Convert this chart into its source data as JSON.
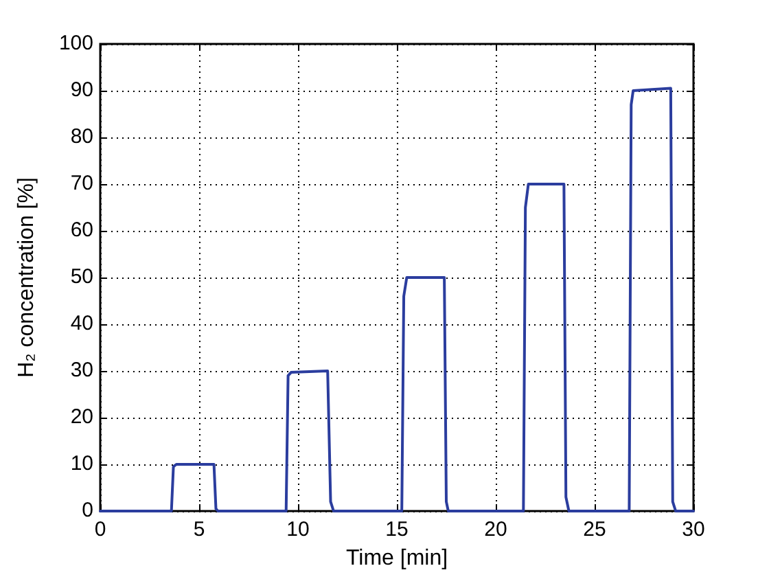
{
  "chart_data": {
    "type": "line",
    "xlabel": "Time [min]",
    "ylabel": "H₂ concentration [%]",
    "x": [
      0,
      3.6,
      3.7,
      3.85,
      5.75,
      5.85,
      5.95,
      9.4,
      9.5,
      9.65,
      11.5,
      11.65,
      11.8,
      15.25,
      15.35,
      15.5,
      17.4,
      17.5,
      17.6,
      21.4,
      21.5,
      21.65,
      23.45,
      23.55,
      23.7,
      26.75,
      26.85,
      26.95,
      28.85,
      28.95,
      29.1,
      30
    ],
    "series": [
      {
        "color": "#2b3d9e",
        "values": [
          0,
          0,
          9.5,
          10,
          10,
          0.5,
          0,
          0,
          29,
          29.7,
          30,
          2,
          0,
          0,
          46,
          50,
          50,
          2,
          0,
          0,
          65,
          70,
          70,
          3,
          0,
          0,
          87,
          90,
          90.5,
          2,
          0,
          0
        ]
      }
    ],
    "xlim": [
      0,
      30
    ],
    "ylim": [
      0,
      100
    ],
    "xticks": [
      0,
      5,
      10,
      15,
      20,
      25,
      30
    ],
    "yticks": [
      0,
      10,
      20,
      30,
      40,
      50,
      60,
      70,
      80,
      90,
      100
    ],
    "grid": true
  }
}
